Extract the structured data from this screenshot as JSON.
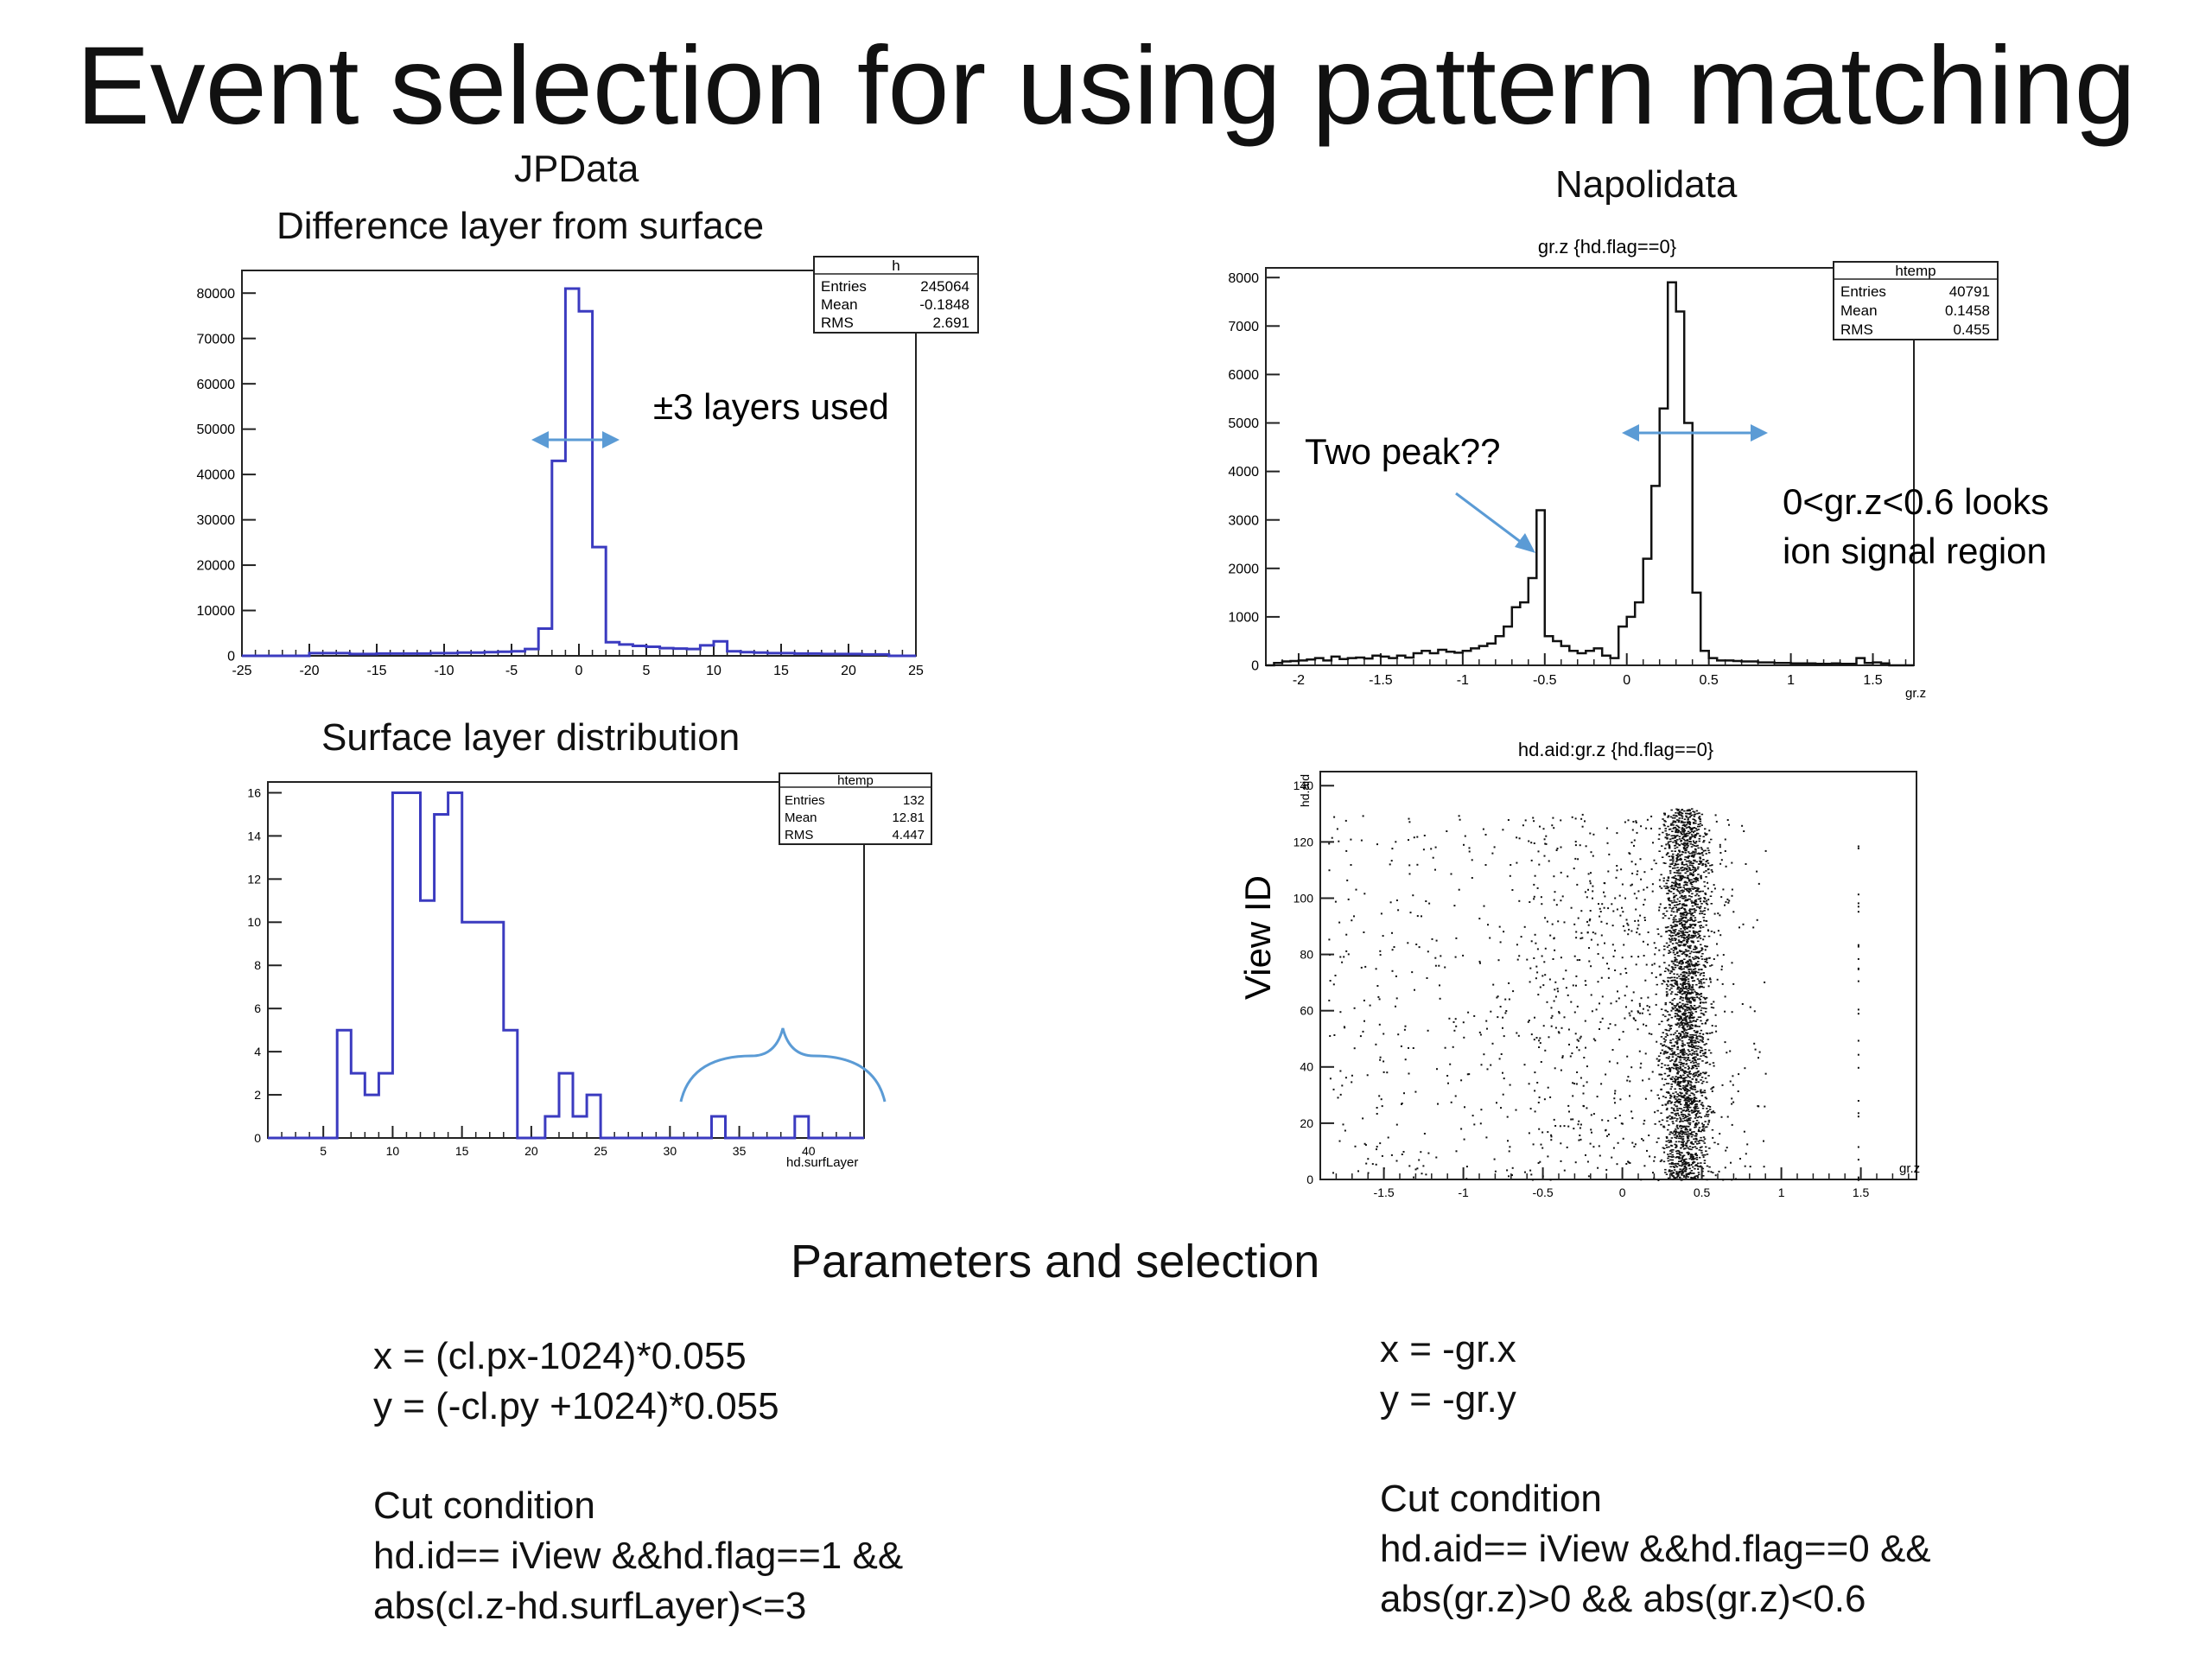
{
  "slide": {
    "title": "Event selection for using pattern matching",
    "left_heading": "JPData",
    "right_heading": "Napolidata",
    "params_heading": "Parameters and selection"
  },
  "chart_data": [
    {
      "type": "bar",
      "subtype": "histogram",
      "title": "Difference layer from surface",
      "xlim": [
        -25,
        25
      ],
      "ylim": [
        0,
        85000
      ],
      "xticks": [
        -25,
        -20,
        -15,
        -10,
        -5,
        0,
        5,
        10,
        15,
        20,
        25
      ],
      "yticks": [
        0,
        10000,
        20000,
        30000,
        40000,
        50000,
        60000,
        70000,
        80000
      ],
      "bin_edges": [
        -25,
        -24,
        -23,
        -22,
        -21,
        -20,
        -19,
        -18,
        -17,
        -16,
        -15,
        -14,
        -13,
        -12,
        -11,
        -10,
        -9,
        -8,
        -7,
        -6,
        -5,
        -4,
        -3,
        -2,
        -1,
        0,
        1,
        2,
        3,
        4,
        5,
        6,
        7,
        8,
        9,
        10,
        11,
        12,
        13,
        14,
        15,
        16,
        17,
        18,
        19,
        20,
        21,
        22,
        23,
        24,
        25
      ],
      "values": [
        0,
        0,
        0,
        0,
        0,
        600,
        600,
        600,
        400,
        400,
        500,
        500,
        500,
        500,
        600,
        600,
        700,
        700,
        800,
        900,
        1000,
        1500,
        6000,
        43000,
        81000,
        76000,
        24000,
        3000,
        2500,
        2200,
        2000,
        1700,
        1600,
        1500,
        2300,
        3200,
        1000,
        800,
        700,
        600,
        600,
        500,
        500,
        400,
        400,
        400,
        300,
        300,
        0,
        0
      ],
      "stats_box": {
        "name": "h",
        "rows": [
          [
            "Entries",
            "245064"
          ],
          [
            "Mean",
            "-0.1848"
          ],
          [
            "RMS",
            "2.691"
          ]
        ]
      },
      "annotation": "±3 layers used",
      "color": "#3b3bc0"
    },
    {
      "type": "bar",
      "subtype": "histogram",
      "title": "Surface layer distribution",
      "xlabel": "hd.surfLayer",
      "xlim": [
        1,
        44
      ],
      "ylim": [
        0,
        16.5
      ],
      "xticks": [
        5,
        10,
        15,
        20,
        25,
        30,
        35,
        40
      ],
      "yticks": [
        0,
        2,
        4,
        6,
        8,
        10,
        12,
        14,
        16
      ],
      "bin_edges": [
        1,
        2,
        3,
        4,
        5,
        6,
        7,
        8,
        9,
        10,
        11,
        12,
        13,
        14,
        15,
        16,
        17,
        18,
        19,
        20,
        21,
        22,
        23,
        24,
        25,
        26,
        27,
        28,
        29,
        30,
        31,
        32,
        33,
        34,
        35,
        36,
        37,
        38,
        39,
        40,
        41,
        42,
        43,
        44
      ],
      "values": [
        0,
        0,
        0,
        0,
        0,
        5,
        3,
        2,
        3,
        16,
        16,
        11,
        15,
        16,
        10,
        10,
        10,
        5,
        0,
        0,
        1,
        3,
        1,
        2,
        0,
        0,
        0,
        0,
        0,
        0,
        0,
        0,
        1,
        0,
        0,
        0,
        0,
        0,
        1,
        0,
        0,
        0,
        0
      ],
      "stats_box": {
        "name": "htemp",
        "rows": [
          [
            "Entries",
            "132"
          ],
          [
            "Mean",
            "12.81"
          ],
          [
            "RMS",
            "4.447"
          ]
        ]
      },
      "color": "#3b3bc0"
    },
    {
      "type": "bar",
      "subtype": "histogram",
      "title": "gr.z {hd.flag==0}",
      "xlabel": "gr.z",
      "xlim": [
        -2.2,
        1.75
      ],
      "ylim": [
        0,
        8200
      ],
      "xticks": [
        -2,
        -1.5,
        -1,
        -0.5,
        0,
        0.5,
        1,
        1.5
      ],
      "yticks": [
        0,
        1000,
        2000,
        3000,
        4000,
        5000,
        6000,
        7000,
        8000
      ],
      "bin_edges": [
        -2.2,
        -2.15,
        -2.1,
        -2.05,
        -2.0,
        -1.95,
        -1.9,
        -1.85,
        -1.8,
        -1.75,
        -1.7,
        -1.65,
        -1.6,
        -1.55,
        -1.5,
        -1.45,
        -1.4,
        -1.35,
        -1.3,
        -1.25,
        -1.2,
        -1.15,
        -1.1,
        -1.05,
        -1.0,
        -0.95,
        -0.9,
        -0.85,
        -0.8,
        -0.75,
        -0.7,
        -0.65,
        -0.6,
        -0.55,
        -0.5,
        -0.45,
        -0.4,
        -0.35,
        -0.3,
        -0.25,
        -0.2,
        -0.15,
        -0.1,
        -0.05,
        0.0,
        0.05,
        0.1,
        0.15,
        0.2,
        0.25,
        0.3,
        0.35,
        0.4,
        0.45,
        0.5,
        0.55,
        0.6,
        0.65,
        0.7,
        0.75,
        0.8,
        0.85,
        0.9,
        0.95,
        1.0,
        1.05,
        1.1,
        1.15,
        1.2,
        1.25,
        1.3,
        1.35,
        1.4,
        1.45,
        1.5,
        1.55,
        1.6,
        1.65,
        1.7,
        1.75
      ],
      "values": [
        0,
        50,
        80,
        90,
        100,
        120,
        150,
        100,
        180,
        130,
        150,
        160,
        140,
        200,
        180,
        150,
        200,
        160,
        250,
        300,
        250,
        320,
        280,
        260,
        300,
        350,
        400,
        450,
        600,
        800,
        1200,
        1300,
        1800,
        3200,
        600,
        500,
        400,
        300,
        250,
        300,
        350,
        200,
        150,
        800,
        1000,
        1300,
        2200,
        3700,
        5300,
        7900,
        7300,
        5000,
        1500,
        300,
        150,
        100,
        100,
        90,
        80,
        80,
        60,
        60,
        50,
        50,
        40,
        40,
        40,
        30,
        30,
        40,
        30,
        30,
        150,
        50,
        60,
        40,
        0,
        0,
        0
      ],
      "stats_box": {
        "name": "htemp",
        "rows": [
          [
            "Entries",
            "40791"
          ],
          [
            "Mean",
            "0.1458"
          ],
          [
            "RMS",
            "0.455"
          ]
        ]
      },
      "annotations": [
        "Two peak??",
        "0<gr.z<0.6 looks",
        "ion signal region"
      ],
      "color": "#111111"
    },
    {
      "type": "scatter",
      "title": "hd.aid:gr.z {hd.flag==0}",
      "xlabel": "gr.z",
      "ylabel": "hd.aid",
      "side_label": "View ID",
      "xlim": [
        -1.9,
        1.85
      ],
      "ylim": [
        0,
        145
      ],
      "xticks": [
        -1.5,
        -1,
        -0.5,
        0,
        0.5,
        1,
        1.5
      ],
      "yticks": [
        0,
        20,
        40,
        60,
        80,
        100,
        120,
        140
      ],
      "description": "dense vertical band near gr.z 0.2-0.6 over hd.aid 0-130, sparse points elsewhere"
    }
  ],
  "params": {
    "left": {
      "line1": "x = (cl.px-1024)*0.055",
      "line2": "y = (-cl.py +1024)*0.055",
      "cut_title": "Cut condition",
      "cut1": "hd.id== iView &&hd.flag==1 &&",
      "cut2": "abs(cl.z-hd.surfLayer)<=3"
    },
    "right": {
      "line1": "x = -gr.x",
      "line2": "y = -gr.y",
      "cut_title": "Cut condition",
      "cut1": "hd.aid== iView &&hd.flag==0 &&",
      "cut2": "abs(gr.z)>0 && abs(gr.z)<0.6"
    }
  }
}
